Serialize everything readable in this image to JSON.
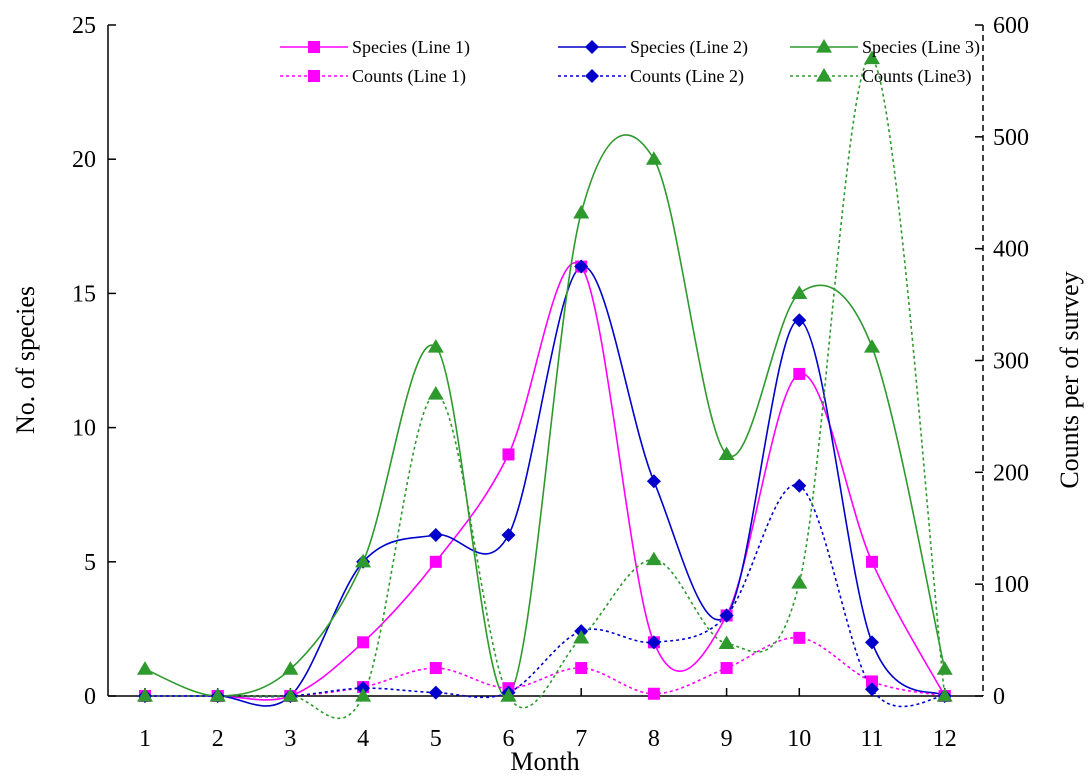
{
  "chart_data": {
    "type": "line",
    "title": "",
    "xlabel": "Month",
    "ylabel_left": "No. of species",
    "ylabel_right": "Counts per of survey",
    "x": [
      1,
      2,
      3,
      4,
      5,
      6,
      7,
      8,
      9,
      10,
      11,
      12
    ],
    "x_tick_labels": [
      "1",
      "2",
      "3",
      "4",
      "5",
      "6",
      "7",
      "8",
      "9",
      "10",
      "11",
      "12"
    ],
    "ylim_left": [
      0,
      25
    ],
    "ylim_right": [
      0,
      600
    ],
    "y_ticks_left": [
      "0",
      "5",
      "10",
      "15",
      "20",
      "25"
    ],
    "y_ticks_right": [
      "0",
      "100",
      "200",
      "300",
      "400",
      "500",
      "600"
    ],
    "grid": false,
    "legend_position": "top-right",
    "series": [
      {
        "name": "Species (Line 1)",
        "axis": "left",
        "style": "solid",
        "marker": "square",
        "color": "#ff00ff",
        "values": [
          0,
          0,
          0,
          2,
          5,
          9,
          16,
          2,
          3,
          12,
          5,
          0
        ]
      },
      {
        "name": "Species (Line 2)",
        "axis": "left",
        "style": "solid",
        "marker": "diamond",
        "color": "#0000cc",
        "values": [
          0,
          0,
          0,
          5,
          6,
          6,
          16,
          8,
          3,
          14,
          2,
          0
        ]
      },
      {
        "name": "Species (Line 3)",
        "axis": "left",
        "style": "solid",
        "marker": "triangle",
        "color": "#2e9a2e",
        "values": [
          1,
          0,
          1,
          5,
          13,
          0,
          18,
          20,
          9,
          15,
          13,
          1
        ]
      },
      {
        "name": "Counts (Line 1)",
        "axis": "right",
        "style": "dotted",
        "marker": "square",
        "color": "#ff00ff",
        "values": [
          0,
          0,
          0,
          8,
          25,
          7,
          25,
          2,
          25,
          52,
          13,
          0
        ]
      },
      {
        "name": "Counts (Line 2)",
        "axis": "right",
        "style": "dotted",
        "marker": "diamond",
        "color": "#0000cc",
        "values": [
          0,
          0,
          0,
          7,
          3,
          3,
          58,
          48,
          72,
          188,
          6,
          0
        ]
      },
      {
        "name": "Counts (Line3)",
        "axis": "right",
        "style": "dotted",
        "marker": "triangle",
        "color": "#2e9a2e",
        "values": [
          0,
          0,
          0,
          0,
          270,
          0,
          52,
          122,
          47,
          101,
          570,
          0
        ]
      }
    ]
  }
}
